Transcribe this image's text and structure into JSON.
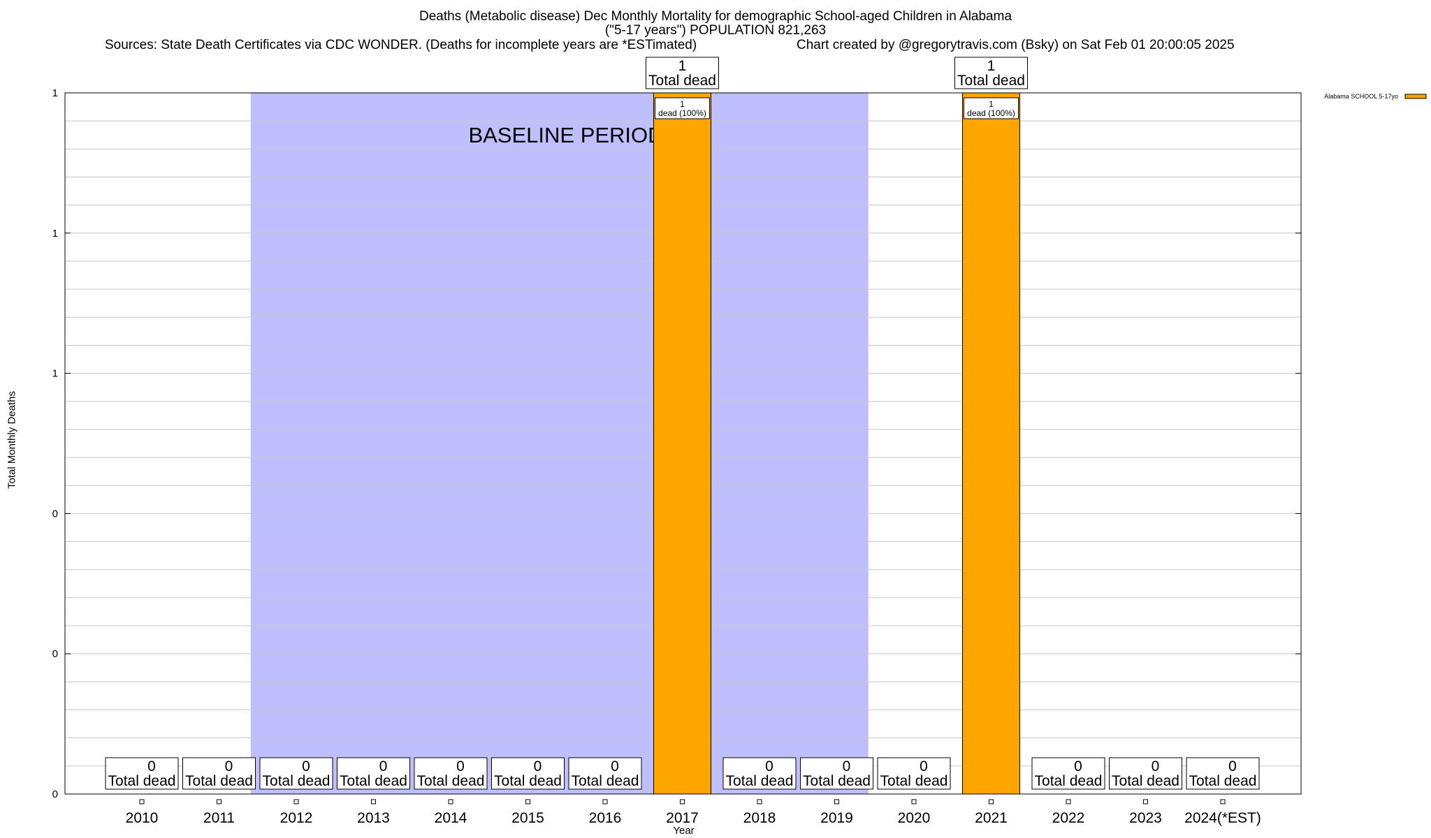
{
  "header": {
    "title_line1": "Deaths (Metabolic disease) Dec Monthly Mortality for demographic School-aged Children in Alabama",
    "title_line2": "(\"5-17 years\") POPULATION 821,263",
    "sources": "Sources: State Death Certificates via CDC WONDER. (Deaths for incomplete years are *ESTimated)",
    "credit": "Chart created by @gregorytravis.com (Bsky) on Sat Feb 01 20:00:05 2025"
  },
  "chart_data": {
    "type": "bar",
    "xlabel": "Year",
    "ylabel": "Total Monthly Deaths",
    "categories": [
      "2010",
      "2011",
      "2012",
      "2013",
      "2014",
      "2015",
      "2016",
      "2017",
      "2018",
      "2019",
      "2020",
      "2021",
      "2022",
      "2023",
      "2024(*EST)"
    ],
    "series": [
      {
        "name": "Alabama SCHOOL 5-17yo",
        "values": [
          0,
          0,
          0,
          0,
          0,
          0,
          0,
          1,
          0,
          0,
          0,
          1,
          0,
          0,
          0
        ]
      }
    ],
    "ylim": [
      0,
      1
    ],
    "ytick_labels": [
      "0",
      "0",
      "0",
      "1",
      "1",
      "1"
    ],
    "baseline_period": {
      "label": "BASELINE PERIOD",
      "start": "2012",
      "end": "2019"
    },
    "total_label_text": "Total dead",
    "bar_label_text": "dead (100%)",
    "legend_position": "top-right",
    "grid": true,
    "colors": {
      "bar": "#ffa500",
      "baseline": "#bfbfff",
      "grid": "#c8c8c8"
    }
  }
}
